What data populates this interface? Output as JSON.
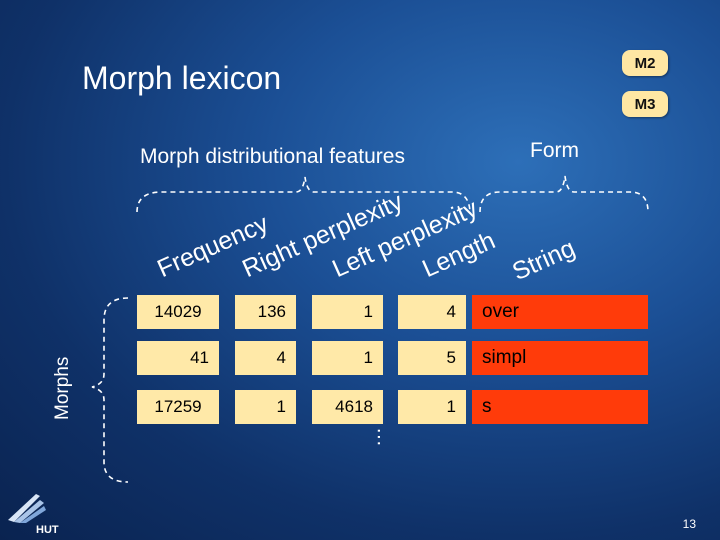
{
  "title": "Morph lexicon",
  "badges": {
    "m2": "M2",
    "m3": "M3"
  },
  "sections": {
    "distributional": "Morph distributional features",
    "form": "Form",
    "morphs": "Morphs"
  },
  "columns": {
    "frequency": "Frequency",
    "right_perplexity": "Right perplexity",
    "left_perplexity": "Left perplexity",
    "length": "Length",
    "string": "String"
  },
  "rows": [
    {
      "frequency": "14029",
      "right": "136",
      "left": "1",
      "length": "4",
      "string": "over"
    },
    {
      "frequency": "41",
      "right": "4",
      "left": "1",
      "length": "5",
      "string": "simpl"
    },
    {
      "frequency": "17259",
      "right": "1",
      "left": "4618",
      "length": "1",
      "string": "s"
    }
  ],
  "ellipsis": "…",
  "footer": {
    "logo_text": "HUT",
    "page_number": "13"
  },
  "colors": {
    "cell": "#ffe9a8",
    "string_cell": "#ff3b0a",
    "badge": "#ffe7a3"
  }
}
